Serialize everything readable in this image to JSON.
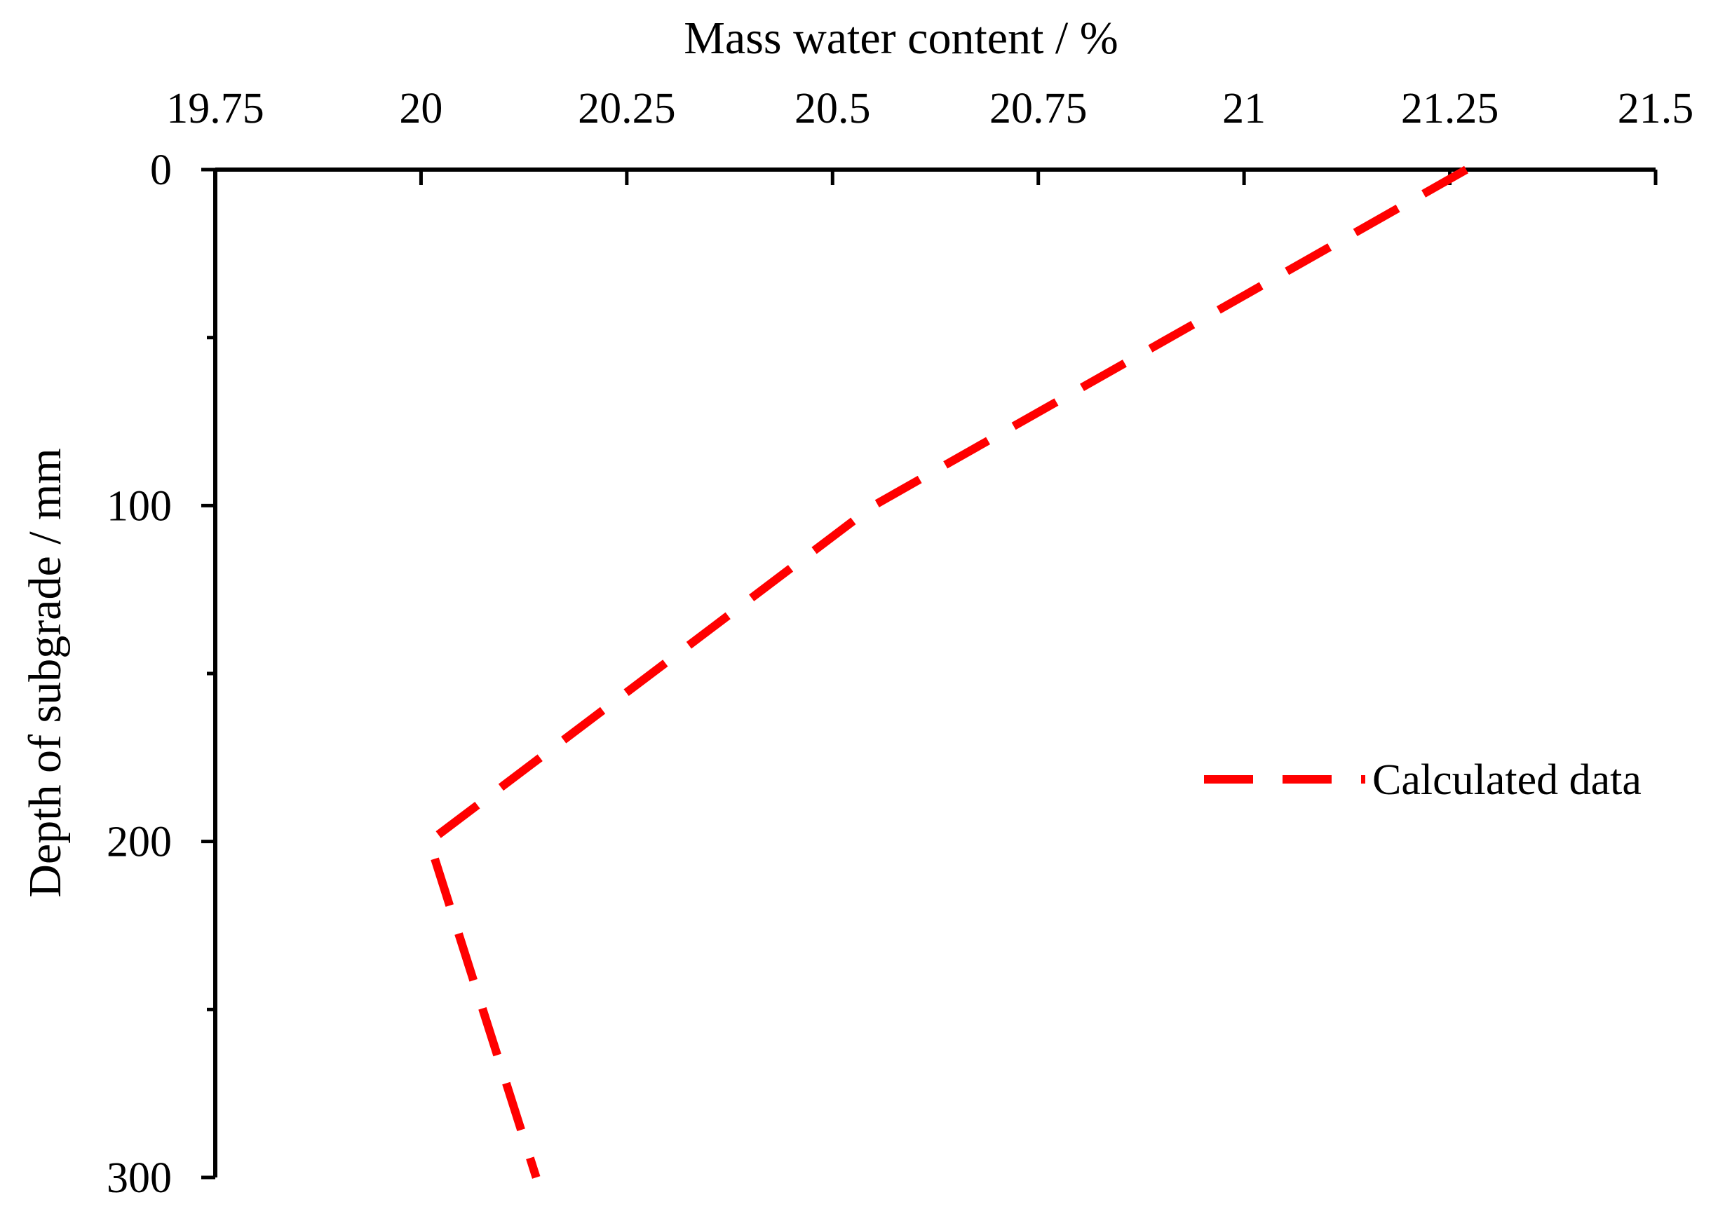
{
  "chart_data": {
    "type": "line",
    "title": "",
    "xlabel": "Mass water content / %",
    "ylabel": "Depth of subgrade / mm",
    "x_axis_position": "top",
    "y_axis_inverted": true,
    "xlim": [
      19.75,
      21.5
    ],
    "ylim": [
      0,
      300
    ],
    "x_major_ticks": [
      19.75,
      20,
      20.25,
      20.5,
      20.75,
      21,
      21.25,
      21.5
    ],
    "x_tick_labels": [
      "19.75",
      "20",
      "20.25",
      "20.5",
      "20.75",
      "21",
      "21.25",
      "21.5"
    ],
    "y_major_ticks": [
      0,
      100,
      200,
      300
    ],
    "y_tick_labels": [
      "0",
      "100",
      "200",
      "300"
    ],
    "y_minor_ticks": [
      50,
      150,
      250
    ],
    "grid": false,
    "legend_position": "right",
    "colors": {
      "series": "#ff0000",
      "axis": "#000000"
    },
    "series": [
      {
        "name": "Calculated data",
        "style": "dashed",
        "x": [
          21.27,
          20.55,
          20.01,
          20.14
        ],
        "y": [
          0,
          100,
          200,
          300
        ]
      }
    ]
  }
}
